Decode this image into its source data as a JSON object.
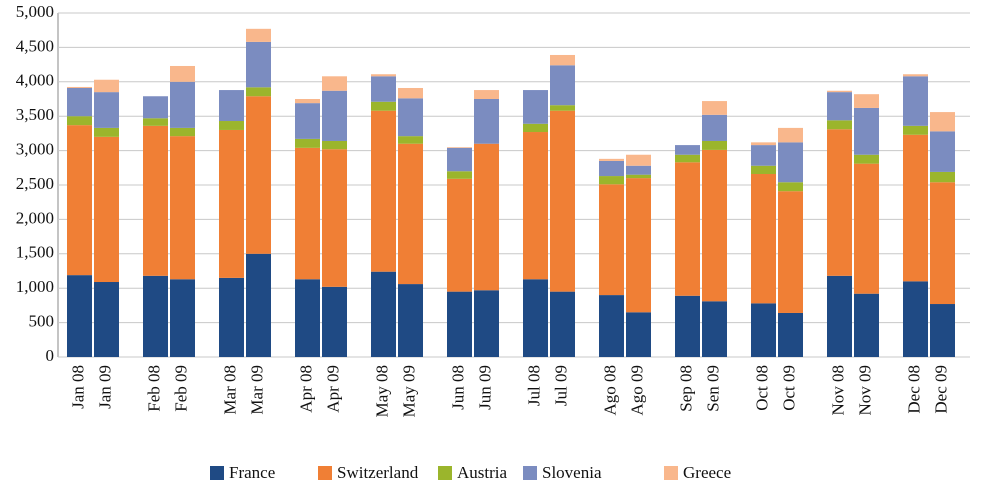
{
  "chart_data": {
    "type": "stacked_bar",
    "categories": [
      "Jan 08",
      "Jan 09",
      "Feb 08",
      "Feb 09",
      "Mar 08",
      "Mar 09",
      "Apr 08",
      "Apr 09",
      "May 08",
      "May 09",
      "Jun 08",
      "Jun 09",
      "Jul 08",
      "Jul 09",
      "Ago 08",
      "Ago 09",
      "Sep 08",
      "Sen 09",
      "Oct 08",
      "Oct 09",
      "Nov 08",
      "Nov 09",
      "Dec 08",
      "Dec 09"
    ],
    "series": [
      {
        "name": "France",
        "color": "#1f4a84",
        "values": [
          1190,
          1090,
          1180,
          1130,
          1150,
          1500,
          1130,
          1020,
          1240,
          1060,
          950,
          970,
          1130,
          950,
          900,
          650,
          890,
          810,
          780,
          640,
          1180,
          920,
          1100,
          770
        ]
      },
      {
        "name": "Switzerland",
        "color": "#f07f35",
        "values": [
          2180,
          2110,
          2180,
          2080,
          2150,
          2290,
          1910,
          2000,
          2340,
          2040,
          1640,
          2130,
          2140,
          2630,
          1610,
          1950,
          1940,
          2200,
          1880,
          1770,
          2130,
          1890,
          2130,
          1770
        ]
      },
      {
        "name": "Austria",
        "color": "#9bb52c",
        "values": [
          130,
          130,
          110,
          120,
          130,
          130,
          130,
          120,
          130,
          110,
          110,
          0,
          120,
          80,
          120,
          50,
          110,
          130,
          120,
          130,
          130,
          130,
          130,
          150
        ]
      },
      {
        "name": "Slovenia",
        "color": "#7b8cc0",
        "values": [
          410,
          520,
          320,
          670,
          450,
          660,
          520,
          730,
          370,
          550,
          340,
          650,
          490,
          580,
          220,
          130,
          140,
          380,
          300,
          580,
          410,
          680,
          720,
          590
        ]
      },
      {
        "name": "Greece",
        "color": "#f9b78c",
        "values": [
          15,
          180,
          0,
          230,
          0,
          190,
          60,
          210,
          30,
          150,
          10,
          130,
          0,
          150,
          30,
          160,
          0,
          200,
          40,
          210,
          20,
          200,
          30,
          280
        ]
      }
    ],
    "ylim": [
      0,
      5000
    ],
    "yticks": [
      0,
      500,
      {
        "value": 1000,
        "label": "1,000"
      },
      {
        "value": 1500,
        "label": "1,500"
      },
      {
        "value": 2000,
        "label": "2,000"
      },
      {
        "value": 2500,
        "label": "2,500"
      },
      {
        "value": 3000,
        "label": "3,000"
      },
      {
        "value": 3500,
        "label": "3,500"
      },
      {
        "value": 4000,
        "label": "4,000"
      },
      {
        "value": 4500,
        "label": "4,500"
      },
      {
        "value": 5000,
        "label": "5,000"
      }
    ],
    "grid": true,
    "legend": "bottom"
  }
}
